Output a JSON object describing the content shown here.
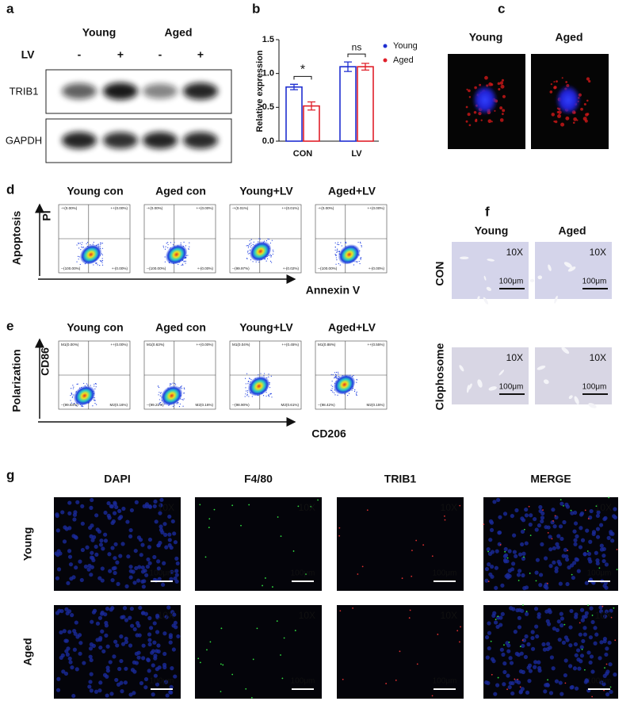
{
  "panel_letters": [
    "a",
    "b",
    "c",
    "d",
    "e",
    "f",
    "g"
  ],
  "western_blot": {
    "groups": [
      "Young",
      "Aged"
    ],
    "treatment_label": "LV",
    "treatment_signs": [
      "-",
      "+",
      "-",
      "+"
    ],
    "bands": [
      "TRIB1",
      "GAPDH"
    ]
  },
  "chart_data": {
    "type": "bar",
    "y_label": "Relative expression",
    "categories": [
      "CON",
      "LV"
    ],
    "series": [
      {
        "name": "Young",
        "color": "#1f2fd0",
        "values": [
          0.8,
          1.1
        ],
        "errors": [
          0.04,
          0.07
        ]
      },
      {
        "name": "Aged",
        "color": "#e0202a",
        "values": [
          0.52,
          1.1
        ],
        "errors": [
          0.06,
          0.05
        ]
      }
    ],
    "ylim": [
      0,
      1.5
    ],
    "yticks": [
      {
        "value": 0,
        "label": "0.0"
      },
      {
        "value": 0.5,
        "label": "0.5"
      },
      {
        "value": 1,
        "label": "1.0"
      },
      {
        "value": 1.5,
        "label": "1.5"
      }
    ],
    "annotations": [
      "*",
      "ns"
    ],
    "legend": "top-right"
  },
  "confocal": {
    "columns": [
      "Young",
      "Aged"
    ]
  },
  "apoptosis": {
    "label": "Apoptosis",
    "y_axis": "PI",
    "x_axis": "Annexin V",
    "plots": [
      {
        "title": "Young con",
        "quadrants": [
          "-+(0.00%)",
          "++(0.00%)",
          "--(100.00%)",
          "+-(0.00%)"
        ]
      },
      {
        "title": "Aged con",
        "quadrants": [
          "-+(0.00%)",
          "++(0.00%)",
          "--(100.00%)",
          "+-(0.00%)"
        ]
      },
      {
        "title": "Young+LV",
        "quadrants": [
          "-+(0.01%)",
          "++(0.01%)",
          "--(99.97%)",
          "+-(0.02%)"
        ]
      },
      {
        "title": "Aged+LV",
        "quadrants": [
          "-+(0.00%)",
          "++(0.00%)",
          "--(100.00%)",
          "+-(0.00%)"
        ]
      }
    ]
  },
  "polarization": {
    "label": "Polarization",
    "y_axis": "CD86",
    "x_axis": "CD206",
    "plots": [
      {
        "title": "Young con",
        "quadrants": [
          "M1(0.00%)",
          "++(0.00%)",
          "--(99.84%)",
          "M2(0.16%)"
        ]
      },
      {
        "title": "Aged con",
        "quadrants": [
          "M1(0.63%)",
          "++(0.00%)",
          "--(99.21%)",
          "M2(0.16%)"
        ]
      },
      {
        "title": "Young+LV",
        "quadrants": [
          "M1(0.04%)",
          "++(0.45%)",
          "--(98.90%)",
          "M2(0.61%)"
        ]
      },
      {
        "title": "Aged+LV",
        "quadrants": [
          "M1(0.88%)",
          "++(0.55%)",
          "--(98.42%)",
          "M2(0.15%)"
        ]
      }
    ]
  },
  "histology": {
    "columns": [
      "Young",
      "Aged"
    ],
    "rows": [
      "CON",
      "Clophosome"
    ],
    "magnification": [
      "10X",
      "10X",
      "10X",
      "10X"
    ],
    "scale_bars": [
      "100μm",
      "100μm",
      "100μm",
      "100μm"
    ]
  },
  "immunofluorescence": {
    "columns": [
      "DAPI",
      "F4/80",
      "TRIB1",
      "MERGE"
    ],
    "rows": [
      "Young",
      "Aged"
    ],
    "magnification": [
      "10X",
      "10X",
      "10X",
      "10X",
      "10X",
      "10X",
      "10X",
      "10X"
    ],
    "scale_bars": [
      "100μm",
      "100μm",
      "100μm",
      "100μm",
      "100μm",
      "100μm",
      "100μm",
      "100μm"
    ]
  }
}
